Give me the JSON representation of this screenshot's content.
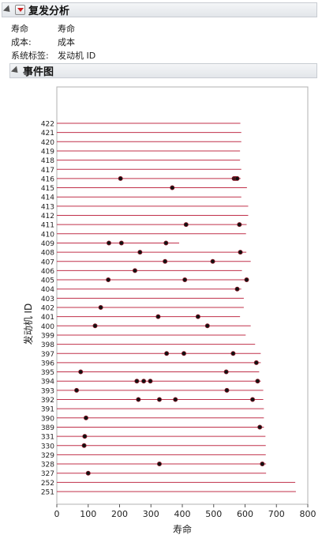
{
  "report": {
    "title": "复发分析",
    "rows": [
      {
        "key": "寿命",
        "value": "寿命"
      },
      {
        "key": "成本:",
        "value": "成本"
      },
      {
        "key": "系统标签:",
        "value": "发动机 ID"
      }
    ]
  },
  "event_plot": {
    "title": "事件图",
    "xlabel": "寿命",
    "ylabel": "发动机 ID",
    "colors": {
      "line": "#c0304a",
      "dot": "#111111",
      "dot_stroke": "#8a1a2a"
    }
  },
  "chart_data": {
    "type": "scatter",
    "xlim": [
      0,
      800
    ],
    "xticks": [
      0,
      100,
      200,
      300,
      400,
      500,
      600,
      700,
      800
    ],
    "xlabel": "寿命",
    "ylabel": "发动机 ID",
    "grid": false,
    "systems": [
      {
        "id": "422",
        "end": 585,
        "events": []
      },
      {
        "id": "421",
        "end": 588,
        "events": []
      },
      {
        "id": "420",
        "end": 588,
        "events": []
      },
      {
        "id": "419",
        "end": 584,
        "events": []
      },
      {
        "id": "418",
        "end": 584,
        "events": []
      },
      {
        "id": "417",
        "end": 588,
        "events": []
      },
      {
        "id": "416",
        "end": 586,
        "events": [
          203,
          565,
          570,
          575
        ]
      },
      {
        "id": "415",
        "end": 606,
        "events": [
          368
        ]
      },
      {
        "id": "414",
        "end": 588,
        "events": []
      },
      {
        "id": "413",
        "end": 610,
        "events": []
      },
      {
        "id": "412",
        "end": 610,
        "events": []
      },
      {
        "id": "411",
        "end": 605,
        "events": [
          412,
          582
        ]
      },
      {
        "id": "410",
        "end": 603,
        "events": []
      },
      {
        "id": "409",
        "end": 390,
        "events": [
          166,
          206,
          348
        ]
      },
      {
        "id": "408",
        "end": 604,
        "events": [
          265,
          585
        ]
      },
      {
        "id": "407",
        "end": 618,
        "events": [
          345,
          497
        ]
      },
      {
        "id": "406",
        "end": 590,
        "events": [
          249
        ]
      },
      {
        "id": "405",
        "end": 610,
        "events": [
          164,
          408,
          605
        ]
      },
      {
        "id": "404",
        "end": 588,
        "events": [
          575
        ]
      },
      {
        "id": "403",
        "end": 596,
        "events": []
      },
      {
        "id": "402",
        "end": 596,
        "events": [
          140
        ]
      },
      {
        "id": "401",
        "end": 584,
        "events": [
          323,
          450
        ]
      },
      {
        "id": "400",
        "end": 618,
        "events": [
          122,
          480
        ]
      },
      {
        "id": "399",
        "end": 602,
        "events": []
      },
      {
        "id": "398",
        "end": 632,
        "events": []
      },
      {
        "id": "397",
        "end": 650,
        "events": [
          350,
          405,
          562
        ]
      },
      {
        "id": "396",
        "end": 650,
        "events": [
          636
        ]
      },
      {
        "id": "395",
        "end": 645,
        "events": [
          76,
          540
        ]
      },
      {
        "id": "394",
        "end": 650,
        "events": [
          255,
          277,
          298,
          640
        ]
      },
      {
        "id": "393",
        "end": 658,
        "events": [
          63,
          542
        ]
      },
      {
        "id": "392",
        "end": 658,
        "events": [
          260,
          327,
          378,
          624
        ]
      },
      {
        "id": "391",
        "end": 660,
        "events": []
      },
      {
        "id": "390",
        "end": 660,
        "events": [
          93
        ]
      },
      {
        "id": "389",
        "end": 660,
        "events": [
          647
        ]
      },
      {
        "id": "331",
        "end": 665,
        "events": [
          89
        ]
      },
      {
        "id": "330",
        "end": 666,
        "events": [
          87
        ]
      },
      {
        "id": "329",
        "end": 666,
        "events": []
      },
      {
        "id": "328",
        "end": 667,
        "events": [
          327,
          655
        ]
      },
      {
        "id": "327",
        "end": 667,
        "events": [
          100
        ]
      },
      {
        "id": "252",
        "end": 760,
        "events": []
      },
      {
        "id": "251",
        "end": 762,
        "events": []
      }
    ]
  }
}
